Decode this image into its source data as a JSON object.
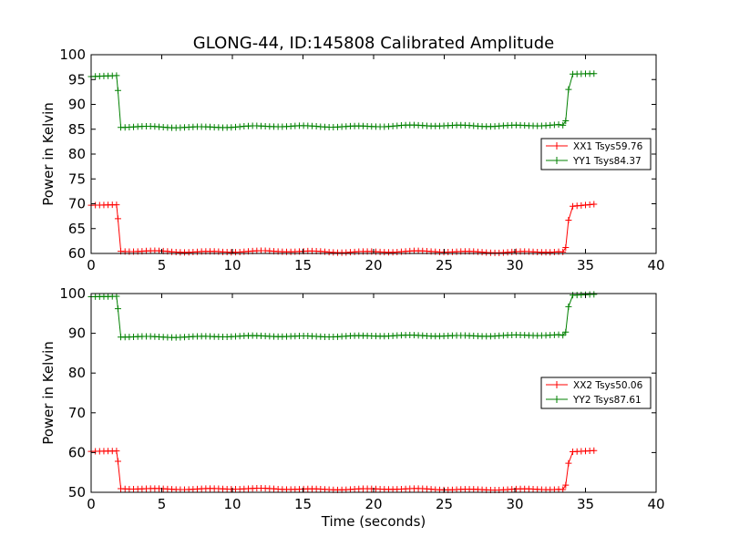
{
  "chart_data": [
    {
      "type": "line",
      "title": "GLONG-44, ID:145808 Calibrated Amplitude",
      "xlabel": "",
      "ylabel": "Power in Kelvin",
      "xlim": [
        0,
        40
      ],
      "ylim": [
        60,
        100
      ],
      "xticks": [
        "0",
        "5",
        "10",
        "15",
        "20",
        "25",
        "30",
        "35",
        "40"
      ],
      "yticks": [
        "60",
        "65",
        "70",
        "75",
        "80",
        "85",
        "90",
        "95",
        "100"
      ],
      "grid": false,
      "legend_position": "center-right",
      "series": [
        {
          "name": "XX1 Tsys59.76",
          "color": "#ff0000",
          "low": 60.5,
          "high": 69.8,
          "points": [
            [
              0,
              69.7
            ],
            [
              1.8,
              69.8
            ],
            [
              1.9,
              67.0
            ],
            [
              2.1,
              60.4
            ],
            [
              33.4,
              60.3
            ],
            [
              33.6,
              61.2
            ],
            [
              33.8,
              66.7
            ],
            [
              34.1,
              69.5
            ],
            [
              35.6,
              69.9
            ]
          ]
        },
        {
          "name": "YY1 Tsys84.37",
          "color": "#008000",
          "low": 85.6,
          "high": 95.8,
          "points": [
            [
              0,
              95.6
            ],
            [
              1.8,
              95.8
            ],
            [
              1.9,
              92.8
            ],
            [
              2.1,
              85.4
            ],
            [
              33.4,
              85.8
            ],
            [
              33.6,
              86.7
            ],
            [
              33.8,
              93.0
            ],
            [
              34.1,
              96.1
            ],
            [
              35.6,
              96.2
            ]
          ]
        }
      ]
    },
    {
      "type": "line",
      "title": "",
      "xlabel": "Time (seconds)",
      "ylabel": "Power in Kelvin",
      "xlim": [
        0,
        40
      ],
      "ylim": [
        50,
        100
      ],
      "xticks": [
        "0",
        "5",
        "10",
        "15",
        "20",
        "25",
        "30",
        "35",
        "40"
      ],
      "yticks": [
        "50",
        "60",
        "70",
        "80",
        "90",
        "100"
      ],
      "grid": false,
      "legend_position": "center-right",
      "series": [
        {
          "name": "XX2 Tsys50.06",
          "color": "#ff0000",
          "low": 50.9,
          "high": 60.4,
          "points": [
            [
              0,
              60.3
            ],
            [
              1.8,
              60.4
            ],
            [
              1.9,
              57.8
            ],
            [
              2.1,
              50.9
            ],
            [
              33.4,
              50.7
            ],
            [
              33.6,
              51.8
            ],
            [
              33.8,
              57.3
            ],
            [
              34.1,
              60.2
            ],
            [
              35.6,
              60.5
            ]
          ]
        },
        {
          "name": "YY2 Tsys87.61",
          "color": "#008000",
          "low": 89.3,
          "high": 99.3,
          "points": [
            [
              0,
              99.2
            ],
            [
              1.8,
              99.3
            ],
            [
              1.9,
              96.2
            ],
            [
              2.1,
              89.1
            ],
            [
              33.4,
              89.5
            ],
            [
              33.6,
              90.3
            ],
            [
              33.8,
              96.7
            ],
            [
              34.1,
              99.6
            ],
            [
              35.6,
              99.8
            ]
          ]
        }
      ]
    }
  ]
}
